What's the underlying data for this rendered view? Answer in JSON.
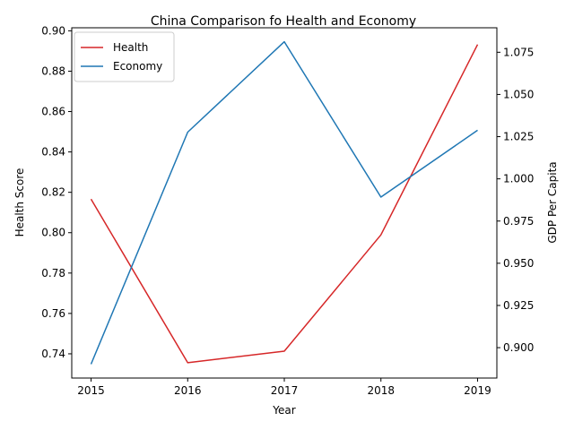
{
  "chart_data": {
    "type": "line",
    "title": "China Comparison fo Health and Economy",
    "xlabel": "Year",
    "ylabel_left": "Health Score",
    "ylabel_right": "GDP Per Capita",
    "x": [
      2015,
      2016,
      2017,
      2018,
      2019
    ],
    "x_ticks": [
      "2015",
      "2016",
      "2017",
      "2018",
      "2019"
    ],
    "left_axis": {
      "ylim": [
        0.728,
        0.9015
      ],
      "ticks": [
        0.74,
        0.76,
        0.78,
        0.8,
        0.82,
        0.84,
        0.86,
        0.88,
        0.9
      ],
      "tick_labels": [
        "0.74",
        "0.76",
        "0.78",
        "0.80",
        "0.82",
        "0.84",
        "0.86",
        "0.88",
        "0.90"
      ]
    },
    "right_axis": {
      "ylim": [
        0.882,
        1.0895
      ],
      "ticks": [
        0.9,
        0.925,
        0.95,
        0.975,
        1.0,
        1.025,
        1.05,
        1.075
      ],
      "tick_labels": [
        "0.900",
        "0.925",
        "0.950",
        "0.975",
        "1.000",
        "1.025",
        "1.050",
        "1.075"
      ]
    },
    "series": [
      {
        "name": "Health",
        "axis": "left",
        "color": "#d62728",
        "values": [
          0.8166,
          0.7356,
          0.7413,
          0.7989,
          0.8932
        ]
      },
      {
        "name": "Economy",
        "axis": "right",
        "color": "#1f77b4",
        "values": [
          0.8902,
          1.0277,
          1.0812,
          0.9892,
          1.0288
        ]
      }
    ],
    "legend": "top-left",
    "grid": false
  }
}
